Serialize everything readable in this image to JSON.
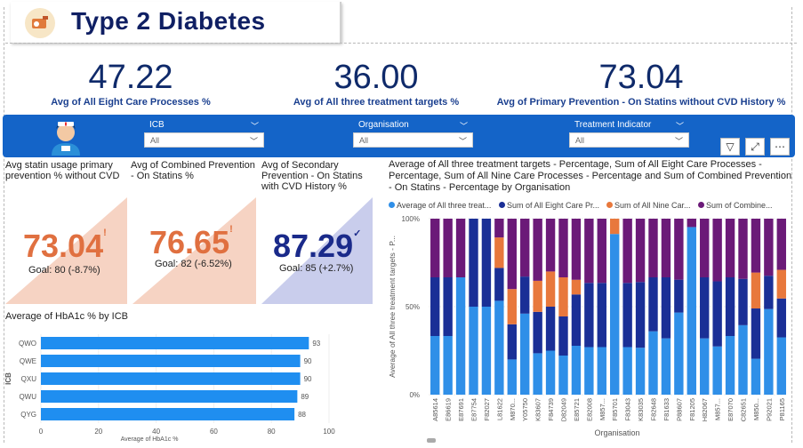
{
  "header": {
    "title": "Type 2 Diabetes"
  },
  "kpis": [
    {
      "value": "47.22",
      "label": "Avg of All Eight Care Processes %"
    },
    {
      "value": "36.00",
      "label": "Avg of All three treatment targets %"
    },
    {
      "value": "73.04",
      "label": "Avg of Primary Prevention - On Statins without CVD History  %"
    }
  ],
  "filters": [
    {
      "label": "ICB",
      "value": "All"
    },
    {
      "label": "Organisation",
      "value": "All"
    },
    {
      "label": "Treatment Indicator",
      "value": "All"
    }
  ],
  "cards": [
    {
      "title": "Avg statin usage primary prevention % without CVD",
      "value": "73.04",
      "mark": "!",
      "goal": "Goal: 80 (-8.7%)",
      "color": "#e07040",
      "fill": "#f6d3c3"
    },
    {
      "title": "Avg of Combined Prevention - On Statins %",
      "value": "76.65",
      "mark": "!",
      "goal": "Goal: 82 (-6.52%)",
      "color": "#e07040",
      "fill": "#f6d3c3"
    },
    {
      "title": "Avg of Secondary Prevention - On Statins with CVD History %",
      "value": "87.29",
      "mark": "✓",
      "goal": "Goal: 85 (+2.7%)",
      "color": "#1a2a8a",
      "fill": "#c9cdec"
    }
  ],
  "hba1c": {
    "title": "Average of HbA1c % by ICB",
    "xlabel": "Average of HbA1c %",
    "ylabel": "ICB"
  },
  "stack": {
    "title": "Average of All three treatment targets - Percentage, Sum of All Eight Care Processes - Percentage, Sum of All Nine Care Processes - Percentage and Sum of Combined Prevention - On Statins - Percentage by Organisation",
    "legend": [
      "Average of All three treat...",
      "Sum of All Eight Care Pr...",
      "Sum of All Nine Car...",
      "Sum of Combine..."
    ],
    "xlabel": "Organisation",
    "ylabel": "Average of All three treatment targets - P..."
  },
  "colors": {
    "s1": "#2f8fe8",
    "s2": "#1a2f96",
    "s3": "#e8783c",
    "s4": "#6b1a78"
  },
  "chart_data": [
    {
      "type": "bar",
      "orientation": "horizontal",
      "title": "Average of HbA1c % by ICB",
      "xlabel": "Average of HbA1c %",
      "ylabel": "ICB",
      "categories": [
        "QWO",
        "QWE",
        "QXU",
        "QWU",
        "QYG"
      ],
      "values": [
        93,
        90,
        90,
        89,
        88
      ],
      "xlim": [
        0,
        100
      ],
      "xticks": [
        "0",
        "20",
        "40",
        "60",
        "80",
        "100"
      ]
    },
    {
      "type": "bar",
      "stacked": "100%",
      "title": "Average of All three treatment targets - Percentage, Sum of All Eight Care Processes - Percentage, Sum of All Nine Care Processes - Percentage and Sum of Combined Prevention - On Statins - Percentage by Organisation",
      "xlabel": "Organisation",
      "ylabel": "Average of All three treatment targets - P...",
      "yticks": [
        "0%",
        "50%",
        "100%"
      ],
      "categories": [
        "A85614",
        "E86619",
        "E87691",
        "E87754",
        "F82027",
        "L81622",
        "M870...",
        "Y05750",
        "K83607",
        "F84739",
        "D82049",
        "E85721",
        "E82008",
        "M857...",
        "F85701",
        "F83043",
        "K83035",
        "F82648",
        "F81633",
        "P88607",
        "F81205",
        "H82067",
        "M857...",
        "E87070",
        "C82651",
        "M850...",
        "P92021",
        "P81165"
      ],
      "series": [
        {
          "name": "Average of All three treat...",
          "values": [
            25,
            25,
            50,
            33,
            33,
            40,
            20,
            35,
            20,
            25,
            20,
            20,
            20,
            20,
            42,
            20,
            20,
            27,
            24,
            35,
            40,
            24,
            20,
            25,
            30,
            20,
            36,
            28
          ]
        },
        {
          "name": "Sum of All Eight Care Pr...",
          "values": [
            25,
            25,
            0,
            33,
            33,
            14,
            20,
            16,
            20,
            25,
            20,
            21,
            27,
            27,
            0,
            27,
            28,
            23,
            26,
            14,
            0,
            26,
            27,
            25,
            20,
            28,
            14,
            19
          ]
        },
        {
          "name": "Sum of All Nine Car...",
          "values": [
            0,
            0,
            0,
            0,
            0,
            13,
            20,
            0,
            15,
            20,
            20,
            6,
            0,
            0,
            4,
            0,
            0,
            0,
            0,
            0,
            0,
            0,
            0,
            0,
            0,
            20,
            0,
            14
          ]
        },
        {
          "name": "Sum of Combine...",
          "values": [
            25,
            25,
            25,
            0,
            0,
            8,
            40,
            25,
            30,
            30,
            30,
            25,
            27,
            27,
            0,
            27,
            27,
            25,
            25,
            26,
            2,
            25,
            26,
            25,
            26,
            30,
            24,
            25
          ]
        }
      ],
      "ylim": [
        0,
        100
      ]
    }
  ]
}
